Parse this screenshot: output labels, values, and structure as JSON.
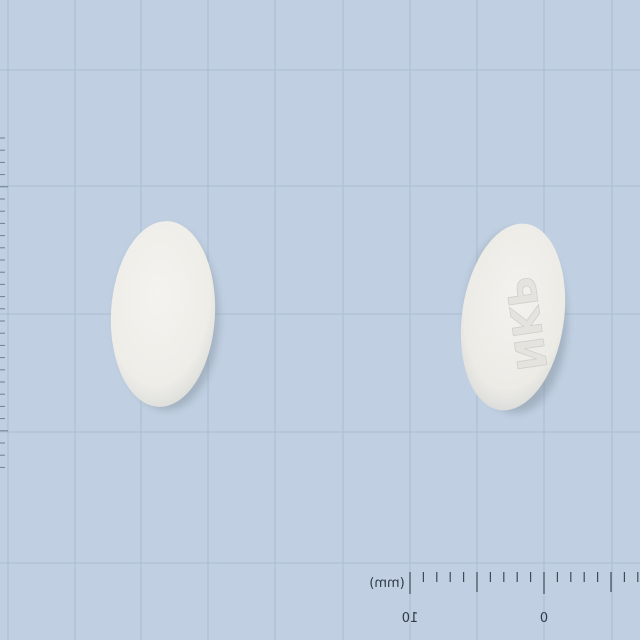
{
  "photo": {
    "background_color": "#c0d0e2",
    "grid_color": "#a9bccf",
    "grid_major_color": "#9fb2c6",
    "pill_color": "#f1f0ec"
  },
  "tablets": [
    {
      "side": "plain"
    },
    {
      "side": "imprinted",
      "imprint": "NKP"
    }
  ],
  "ruler": {
    "unit_label": "(mm)",
    "labels": [
      "10",
      "0"
    ]
  }
}
